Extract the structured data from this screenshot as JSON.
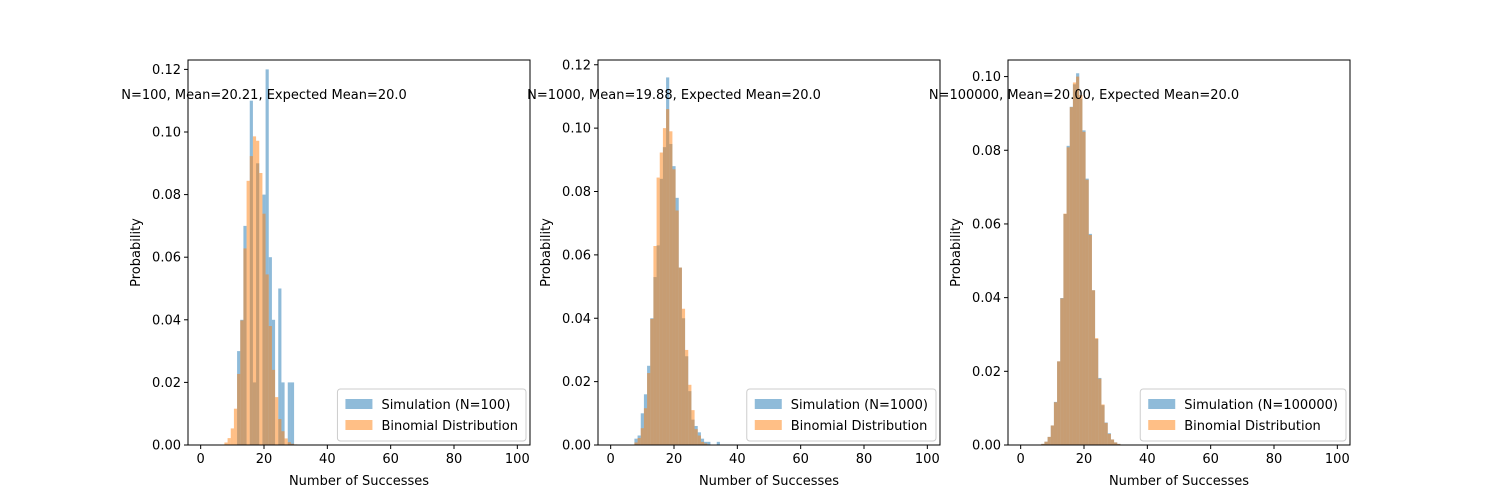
{
  "colors": {
    "simulation": "#1f77b4",
    "binomial": "#ff7f0e",
    "bar_alpha": 0.5,
    "axis": "#000000",
    "background": "#ffffff"
  },
  "chart_data": [
    {
      "type": "bar",
      "annotation": "N=100, Mean=20.21, Expected Mean=20.0",
      "xlabel": "Number of Successes",
      "ylabel": "Probability",
      "xlim": [
        -4,
        104
      ],
      "ylim": [
        0,
        0.123
      ],
      "xticks": [
        0,
        20,
        40,
        60,
        80,
        100
      ],
      "yticks": [
        0.0,
        0.02,
        0.04,
        0.06,
        0.08,
        0.1,
        0.12
      ],
      "ytick_labels": [
        "0.00",
        "0.02",
        "0.04",
        "0.06",
        "0.08",
        "0.10",
        "0.12"
      ],
      "grid": false,
      "legend": {
        "placement": "lower-right",
        "entries": [
          "Simulation (N=100)",
          "Binomial Distribution"
        ]
      },
      "series": [
        {
          "name": "Simulation (N=100)",
          "bin_width": 1,
          "x": [
            12,
            13,
            14,
            15,
            16,
            17,
            18,
            19,
            20,
            21,
            22,
            23,
            24,
            25,
            26,
            27,
            28,
            29
          ],
          "values": [
            0.03,
            0.04,
            0.07,
            0.0,
            0.11,
            0.02,
            0.09,
            0.0,
            0.08,
            0.12,
            0.06,
            0.04,
            0.0,
            0.05,
            0.02,
            0.0,
            0.02,
            0.02
          ]
        },
        {
          "name": "Binomial Distribution",
          "bin_width": 1,
          "x": [
            8,
            9,
            10,
            11,
            12,
            13,
            14,
            15,
            16,
            17,
            18,
            19,
            20,
            21,
            22,
            23,
            24,
            25,
            26,
            27,
            28,
            29,
            30,
            31,
            32,
            33,
            34
          ],
          "values": [
            0.0008,
            0.0022,
            0.0053,
            0.0116,
            0.0227,
            0.0398,
            0.0628,
            0.0844,
            0.0923,
            0.0986,
            0.0972,
            0.0869,
            0.0739,
            0.0545,
            0.038,
            0.024,
            0.0153,
            0.0083,
            0.0044,
            0.0021,
            0.0009,
            0.0004,
            0.0002,
            0.0001,
            0.0,
            0.0,
            0.0
          ]
        }
      ]
    },
    {
      "type": "bar",
      "annotation": "N=1000, Mean=19.88, Expected Mean=20.0",
      "xlabel": "Number of Successes",
      "ylabel": "Probability",
      "xlim": [
        -4,
        104
      ],
      "ylim": [
        0,
        0.1215
      ],
      "xticks": [
        0,
        20,
        40,
        60,
        80,
        100
      ],
      "yticks": [
        0.0,
        0.02,
        0.04,
        0.06,
        0.08,
        0.1,
        0.12
      ],
      "ytick_labels": [
        "0.00",
        "0.02",
        "0.04",
        "0.06",
        "0.08",
        "0.10",
        "0.12"
      ],
      "grid": false,
      "legend": {
        "placement": "lower-right",
        "entries": [
          "Simulation (N=1000)",
          "Binomial Distribution"
        ]
      },
      "series": [
        {
          "name": "Simulation (N=1000)",
          "bin_width": 1,
          "x": [
            8,
            9,
            10,
            11,
            12,
            13,
            14,
            15,
            16,
            17,
            18,
            19,
            20,
            21,
            22,
            23,
            24,
            25,
            26,
            27,
            28,
            29,
            30,
            31,
            32,
            33,
            34
          ],
          "values": [
            0.002,
            0.003,
            0.01,
            0.016,
            0.025,
            0.04,
            0.053,
            0.063,
            0.084,
            0.094,
            0.116,
            0.095,
            0.088,
            0.078,
            0.056,
            0.04,
            0.028,
            0.017,
            0.008,
            0.006,
            0.004,
            0.002,
            0.001,
            0.001,
            0.0,
            0.0,
            0.001
          ]
        },
        {
          "name": "Binomial Distribution",
          "bin_width": 1,
          "x": [
            8,
            9,
            10,
            11,
            12,
            13,
            14,
            15,
            16,
            17,
            18,
            19,
            20,
            21,
            22,
            23,
            24,
            25,
            26,
            27,
            28,
            29,
            30,
            31,
            32,
            33,
            34
          ],
          "values": [
            0.0008,
            0.0022,
            0.0053,
            0.0116,
            0.0227,
            0.0398,
            0.0628,
            0.0844,
            0.0923,
            0.1,
            0.106,
            0.099,
            0.087,
            0.074,
            0.056,
            0.043,
            0.03,
            0.019,
            0.011,
            0.005,
            0.003,
            0.001,
            0.0005,
            0.0002,
            0.0001,
            0.0,
            0.0
          ]
        }
      ]
    },
    {
      "type": "bar",
      "annotation": "N=100000, Mean=20.00, Expected Mean=20.0",
      "xlabel": "Number of Successes",
      "ylabel": "Probability",
      "xlim": [
        -4,
        104
      ],
      "ylim": [
        0,
        0.1045
      ],
      "xticks": [
        0,
        20,
        40,
        60,
        80,
        100
      ],
      "yticks": [
        0.0,
        0.02,
        0.04,
        0.06,
        0.08,
        0.1
      ],
      "ytick_labels": [
        "0.00",
        "0.02",
        "0.04",
        "0.06",
        "0.08",
        "0.10"
      ],
      "grid": false,
      "legend": {
        "placement": "lower-right",
        "entries": [
          "Simulation (N=100000)",
          "Binomial Distribution"
        ]
      },
      "series": [
        {
          "name": "Simulation (N=100000)",
          "bin_width": 1,
          "x": [
            7,
            8,
            9,
            10,
            11,
            12,
            13,
            14,
            15,
            16,
            17,
            18,
            19,
            20,
            21,
            22,
            23,
            24,
            25,
            26,
            27,
            28,
            29,
            30,
            31,
            32,
            33
          ],
          "values": [
            0.0003,
            0.0009,
            0.0022,
            0.0053,
            0.0117,
            0.0227,
            0.0399,
            0.0627,
            0.0812,
            0.0918,
            0.0979,
            0.1009,
            0.094,
            0.0854,
            0.0723,
            0.0573,
            0.042,
            0.0288,
            0.0182,
            0.0108,
            0.0061,
            0.0032,
            0.0015,
            0.0007,
            0.0003,
            0.0001,
            5e-05
          ]
        },
        {
          "name": "Binomial Distribution",
          "bin_width": 1,
          "x": [
            7,
            8,
            9,
            10,
            11,
            12,
            13,
            14,
            15,
            16,
            17,
            18,
            19,
            20,
            21,
            22,
            23,
            24,
            25,
            26,
            27,
            28,
            29,
            30,
            31,
            32,
            33
          ],
          "values": [
            0.0003,
            0.0009,
            0.0022,
            0.0053,
            0.0116,
            0.0227,
            0.0398,
            0.0628,
            0.0808,
            0.0917,
            0.0984,
            0.1,
            0.095,
            0.085,
            0.072,
            0.057,
            0.042,
            0.029,
            0.018,
            0.011,
            0.006,
            0.003,
            0.0015,
            0.0007,
            0.0003,
            0.0001,
            5e-05
          ]
        }
      ]
    }
  ]
}
